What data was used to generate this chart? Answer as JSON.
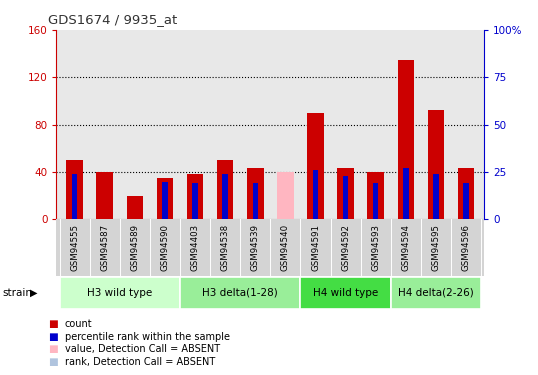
{
  "title": "GDS1674 / 9935_at",
  "samples": [
    "GSM94555",
    "GSM94587",
    "GSM94589",
    "GSM94590",
    "GSM94403",
    "GSM94538",
    "GSM94539",
    "GSM94540",
    "GSM94591",
    "GSM94592",
    "GSM94593",
    "GSM94594",
    "GSM94595",
    "GSM94596"
  ],
  "count_values": [
    50,
    40,
    20,
    35,
    38,
    50,
    43,
    0,
    90,
    43,
    40,
    135,
    92,
    43
  ],
  "rank_values_pct": [
    24,
    0,
    0,
    20,
    19,
    24,
    19,
    0,
    26,
    23,
    19,
    27,
    24,
    19
  ],
  "absent_value_values": [
    0,
    0,
    0,
    0,
    0,
    0,
    0,
    40,
    0,
    0,
    0,
    0,
    0,
    0
  ],
  "absent_rank_pct": [
    0,
    0,
    0,
    0,
    0,
    0,
    0,
    0,
    0,
    0,
    0,
    0,
    0,
    0
  ],
  "groups": [
    {
      "label": "H3 wild type",
      "start": 0,
      "end": 3,
      "color": "#ccffcc"
    },
    {
      "label": "H3 delta(1-28)",
      "start": 4,
      "end": 7,
      "color": "#88ee88"
    },
    {
      "label": "H4 wild type",
      "start": 8,
      "end": 10,
      "color": "#44dd44"
    },
    {
      "label": "H4 delta(2-26)",
      "start": 11,
      "end": 13,
      "color": "#88ee88"
    }
  ],
  "ylim_left": [
    0,
    160
  ],
  "ylim_right": [
    0,
    100
  ],
  "yticks_left": [
    0,
    40,
    80,
    120,
    160
  ],
  "yticks_right": [
    0,
    25,
    50,
    75,
    100
  ],
  "bar_width": 0.55,
  "rank_bar_width": 0.18,
  "count_color": "#cc0000",
  "rank_color": "#0000cc",
  "absent_value_color": "#ffb6c1",
  "absent_rank_color": "#b0c4de",
  "plot_bg_color": "#e8e8e8",
  "title_color": "#333333",
  "left_label_color": "#cc0000",
  "right_label_color": "#0000cc",
  "legend_items": [
    "count",
    "percentile rank within the sample",
    "value, Detection Call = ABSENT",
    "rank, Detection Call = ABSENT"
  ],
  "legend_colors": [
    "#cc0000",
    "#0000cc",
    "#ffb6c1",
    "#b0c4de"
  ]
}
